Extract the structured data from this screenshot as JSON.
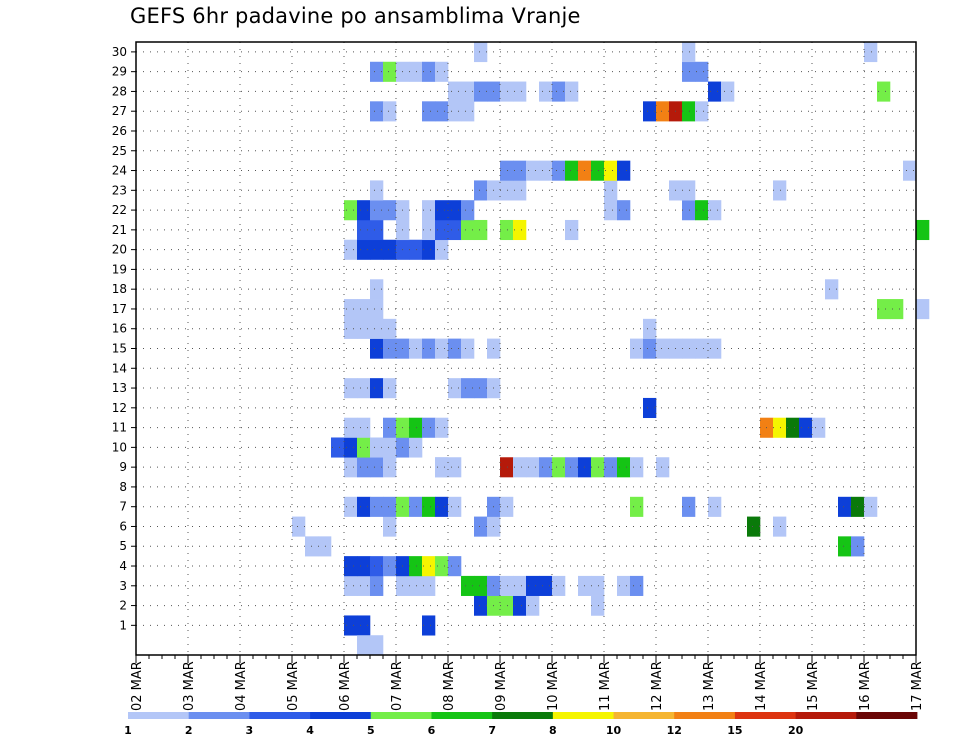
{
  "chart_data": {
    "type": "heatmap",
    "title": "GEFS 6hr padavine po ansamblima Vranje",
    "xlabel": "",
    "ylabel": "",
    "x_tick_labels": [
      "02 MAR",
      "03 MAR",
      "04 MAR",
      "05 MAR",
      "06 MAR",
      "07 MAR",
      "08 MAR",
      "09 MAR",
      "10 MAR",
      "11 MAR",
      "12 MAR",
      "13 MAR",
      "14 MAR",
      "15 MAR",
      "16 MAR",
      "17 MAR"
    ],
    "y_tick_labels": [
      "1",
      "2",
      "3",
      "4",
      "5",
      "6",
      "7",
      "8",
      "9",
      "10",
      "11",
      "12",
      "13",
      "14",
      "15",
      "16",
      "17",
      "18",
      "19",
      "20",
      "21",
      "22",
      "23",
      "24",
      "25",
      "26",
      "27",
      "28",
      "29",
      "30"
    ],
    "time_step_hours": 6,
    "ylim": [
      0,
      30
    ],
    "grid": true,
    "colorbar": {
      "position": "bottom",
      "labels": [
        "1",
        "2",
        "3",
        "4",
        "5",
        "6",
        "7",
        "8",
        "10",
        "12",
        "15",
        "20"
      ],
      "colors": [
        "#b3c6f7",
        "#6b8ff0",
        "#2f5ce8",
        "#0d3fd8",
        "#74ee48",
        "#15c415",
        "#0a7a0a",
        "#f5f500",
        "#f5b531",
        "#f28014",
        "#dd3410",
        "#b51a0a",
        "#6a0505"
      ]
    },
    "cells": [
      {
        "step": 16,
        "member": 1,
        "level": 3
      },
      {
        "step": 17,
        "member": 1,
        "level": 3
      },
      {
        "step": 17,
        "member": 0,
        "level": 0
      },
      {
        "step": 18,
        "member": 0,
        "level": 0
      },
      {
        "step": 22,
        "member": 1,
        "level": 3
      },
      {
        "step": 26,
        "member": 2,
        "level": 3
      },
      {
        "step": 27,
        "member": 2,
        "level": 4
      },
      {
        "step": 28,
        "member": 2,
        "level": 4
      },
      {
        "step": 29,
        "member": 2,
        "level": 3
      },
      {
        "step": 30,
        "member": 2,
        "level": 0
      },
      {
        "step": 35,
        "member": 2,
        "level": 0
      },
      {
        "step": 16,
        "member": 3,
        "level": 0
      },
      {
        "step": 17,
        "member": 3,
        "level": 0
      },
      {
        "step": 18,
        "member": 3,
        "level": 1
      },
      {
        "step": 20,
        "member": 3,
        "level": 0
      },
      {
        "step": 21,
        "member": 3,
        "level": 0
      },
      {
        "step": 22,
        "member": 3,
        "level": 0
      },
      {
        "step": 25,
        "member": 3,
        "level": 5
      },
      {
        "step": 26,
        "member": 3,
        "level": 5
      },
      {
        "step": 27,
        "member": 3,
        "level": 1
      },
      {
        "step": 28,
        "member": 3,
        "level": 0
      },
      {
        "step": 29,
        "member": 3,
        "level": 0
      },
      {
        "step": 30,
        "member": 3,
        "level": 3
      },
      {
        "step": 31,
        "member": 3,
        "level": 3
      },
      {
        "step": 32,
        "member": 3,
        "level": 0
      },
      {
        "step": 34,
        "member": 3,
        "level": 0
      },
      {
        "step": 35,
        "member": 3,
        "level": 0
      },
      {
        "step": 37,
        "member": 3,
        "level": 0
      },
      {
        "step": 38,
        "member": 3,
        "level": 1
      },
      {
        "step": 16,
        "member": 4,
        "level": 3
      },
      {
        "step": 17,
        "member": 4,
        "level": 3
      },
      {
        "step": 18,
        "member": 4,
        "level": 2
      },
      {
        "step": 19,
        "member": 4,
        "level": 1
      },
      {
        "step": 20,
        "member": 4,
        "level": 3
      },
      {
        "step": 21,
        "member": 4,
        "level": 5
      },
      {
        "step": 22,
        "member": 4,
        "level": 7
      },
      {
        "step": 23,
        "member": 4,
        "level": 4
      },
      {
        "step": 24,
        "member": 4,
        "level": 1
      },
      {
        "step": 13,
        "member": 5,
        "level": 0
      },
      {
        "step": 14,
        "member": 5,
        "level": 0
      },
      {
        "step": 54,
        "member": 5,
        "level": 5
      },
      {
        "step": 55,
        "member": 5,
        "level": 1
      },
      {
        "step": 12,
        "member": 6,
        "level": 0
      },
      {
        "step": 19,
        "member": 6,
        "level": 0
      },
      {
        "step": 26,
        "member": 6,
        "level": 1
      },
      {
        "step": 27,
        "member": 6,
        "level": 0
      },
      {
        "step": 47,
        "member": 6,
        "level": 6
      },
      {
        "step": 49,
        "member": 6,
        "level": 0
      },
      {
        "step": 16,
        "member": 7,
        "level": 0
      },
      {
        "step": 17,
        "member": 7,
        "level": 3
      },
      {
        "step": 18,
        "member": 7,
        "level": 1
      },
      {
        "step": 19,
        "member": 7,
        "level": 1
      },
      {
        "step": 20,
        "member": 7,
        "level": 4
      },
      {
        "step": 21,
        "member": 7,
        "level": 1
      },
      {
        "step": 22,
        "member": 7,
        "level": 5
      },
      {
        "step": 23,
        "member": 7,
        "level": 3
      },
      {
        "step": 24,
        "member": 7,
        "level": 0
      },
      {
        "step": 27,
        "member": 7,
        "level": 1
      },
      {
        "step": 28,
        "member": 7,
        "level": 0
      },
      {
        "step": 38,
        "member": 7,
        "level": 4
      },
      {
        "step": 42,
        "member": 7,
        "level": 1
      },
      {
        "step": 44,
        "member": 7,
        "level": 0
      },
      {
        "step": 54,
        "member": 7,
        "level": 3
      },
      {
        "step": 55,
        "member": 7,
        "level": 6
      },
      {
        "step": 56,
        "member": 7,
        "level": 0
      },
      {
        "step": 16,
        "member": 9,
        "level": 0
      },
      {
        "step": 17,
        "member": 9,
        "level": 1
      },
      {
        "step": 18,
        "member": 9,
        "level": 1
      },
      {
        "step": 19,
        "member": 9,
        "level": 0
      },
      {
        "step": 23,
        "member": 9,
        "level": 0
      },
      {
        "step": 24,
        "member": 9,
        "level": 0
      },
      {
        "step": 23,
        "member": 9,
        "level": 0
      },
      {
        "step": 28,
        "member": 9,
        "level": 11
      },
      {
        "step": 29,
        "member": 9,
        "level": 0
      },
      {
        "step": 30,
        "member": 9,
        "level": 0
      },
      {
        "step": 31,
        "member": 9,
        "level": 1
      },
      {
        "step": 32,
        "member": 9,
        "level": 4
      },
      {
        "step": 33,
        "member": 9,
        "level": 1
      },
      {
        "step": 34,
        "member": 9,
        "level": 3
      },
      {
        "step": 35,
        "member": 9,
        "level": 4
      },
      {
        "step": 36,
        "member": 9,
        "level": 1
      },
      {
        "step": 37,
        "member": 9,
        "level": 5
      },
      {
        "step": 38,
        "member": 9,
        "level": 0
      },
      {
        "step": 40,
        "member": 9,
        "level": 0
      },
      {
        "step": 15,
        "member": 10,
        "level": 2
      },
      {
        "step": 16,
        "member": 10,
        "level": 3
      },
      {
        "step": 17,
        "member": 10,
        "level": 4
      },
      {
        "step": 18,
        "member": 10,
        "level": 0
      },
      {
        "step": 19,
        "member": 10,
        "level": 0
      },
      {
        "step": 20,
        "member": 10,
        "level": 1
      },
      {
        "step": 21,
        "member": 10,
        "level": 0
      },
      {
        "step": 16,
        "member": 11,
        "level": 0
      },
      {
        "step": 17,
        "member": 11,
        "level": 0
      },
      {
        "step": 19,
        "member": 11,
        "level": 1
      },
      {
        "step": 20,
        "member": 11,
        "level": 4
      },
      {
        "step": 21,
        "member": 11,
        "level": 5
      },
      {
        "step": 22,
        "member": 11,
        "level": 1
      },
      {
        "step": 23,
        "member": 11,
        "level": 0
      },
      {
        "step": 48,
        "member": 11,
        "level": 9
      },
      {
        "step": 49,
        "member": 11,
        "level": 7
      },
      {
        "step": 50,
        "member": 11,
        "level": 6
      },
      {
        "step": 51,
        "member": 11,
        "level": 3
      },
      {
        "step": 52,
        "member": 11,
        "level": 0
      },
      {
        "step": 39,
        "member": 12,
        "level": 3
      },
      {
        "step": 16,
        "member": 13,
        "level": 0
      },
      {
        "step": 17,
        "member": 13,
        "level": 0
      },
      {
        "step": 18,
        "member": 13,
        "level": 3
      },
      {
        "step": 19,
        "member": 13,
        "level": 0
      },
      {
        "step": 24,
        "member": 13,
        "level": 0
      },
      {
        "step": 25,
        "member": 13,
        "level": 1
      },
      {
        "step": 26,
        "member": 13,
        "level": 1
      },
      {
        "step": 27,
        "member": 13,
        "level": 0
      },
      {
        "step": 18,
        "member": 15,
        "level": 3
      },
      {
        "step": 19,
        "member": 15,
        "level": 1
      },
      {
        "step": 20,
        "member": 15,
        "level": 1
      },
      {
        "step": 21,
        "member": 15,
        "level": 0
      },
      {
        "step": 22,
        "member": 15,
        "level": 1
      },
      {
        "step": 23,
        "member": 15,
        "level": 0
      },
      {
        "step": 24,
        "member": 15,
        "level": 1
      },
      {
        "step": 25,
        "member": 15,
        "level": 0
      },
      {
        "step": 27,
        "member": 15,
        "level": 0
      },
      {
        "step": 38,
        "member": 15,
        "level": 0
      },
      {
        "step": 39,
        "member": 15,
        "level": 1
      },
      {
        "step": 40,
        "member": 15,
        "level": 0
      },
      {
        "step": 41,
        "member": 15,
        "level": 0
      },
      {
        "step": 42,
        "member": 15,
        "level": 0
      },
      {
        "step": 43,
        "member": 15,
        "level": 0
      },
      {
        "step": 44,
        "member": 15,
        "level": 0
      },
      {
        "step": 16,
        "member": 16,
        "level": 0
      },
      {
        "step": 17,
        "member": 16,
        "level": 0
      },
      {
        "step": 18,
        "member": 16,
        "level": 0
      },
      {
        "step": 19,
        "member": 16,
        "level": 0
      },
      {
        "step": 39,
        "member": 16,
        "level": 0
      },
      {
        "step": 16,
        "member": 17,
        "level": 0
      },
      {
        "step": 17,
        "member": 17,
        "level": 0
      },
      {
        "step": 18,
        "member": 17,
        "level": 0
      },
      {
        "step": 57,
        "member": 17,
        "level": 4
      },
      {
        "step": 58,
        "member": 17,
        "level": 4
      },
      {
        "step": 60,
        "member": 17,
        "level": 0
      },
      {
        "step": 18,
        "member": 18,
        "level": 0
      },
      {
        "step": 53,
        "member": 18,
        "level": 0
      },
      {
        "step": 16,
        "member": 20,
        "level": 0
      },
      {
        "step": 17,
        "member": 20,
        "level": 3
      },
      {
        "step": 18,
        "member": 20,
        "level": 3
      },
      {
        "step": 19,
        "member": 20,
        "level": 3
      },
      {
        "step": 20,
        "member": 20,
        "level": 2
      },
      {
        "step": 21,
        "member": 20,
        "level": 2
      },
      {
        "step": 22,
        "member": 20,
        "level": 3
      },
      {
        "step": 23,
        "member": 20,
        "level": 0
      },
      {
        "step": 17,
        "member": 21,
        "level": 2
      },
      {
        "step": 18,
        "member": 21,
        "level": 2
      },
      {
        "step": 20,
        "member": 21,
        "level": 0
      },
      {
        "step": 22,
        "member": 21,
        "level": 0
      },
      {
        "step": 23,
        "member": 21,
        "level": 2
      },
      {
        "step": 24,
        "member": 21,
        "level": 2
      },
      {
        "step": 25,
        "member": 21,
        "level": 4
      },
      {
        "step": 26,
        "member": 21,
        "level": 4
      },
      {
        "step": 28,
        "member": 21,
        "level": 4
      },
      {
        "step": 29,
        "member": 21,
        "level": 7
      },
      {
        "step": 33,
        "member": 21,
        "level": 0
      },
      {
        "step": 60,
        "member": 21,
        "level": 5
      },
      {
        "step": 16,
        "member": 22,
        "level": 4
      },
      {
        "step": 17,
        "member": 22,
        "level": 3
      },
      {
        "step": 18,
        "member": 22,
        "level": 1
      },
      {
        "step": 19,
        "member": 22,
        "level": 1
      },
      {
        "step": 20,
        "member": 22,
        "level": 0
      },
      {
        "step": 22,
        "member": 22,
        "level": 0
      },
      {
        "step": 23,
        "member": 22,
        "level": 3
      },
      {
        "step": 24,
        "member": 22,
        "level": 3
      },
      {
        "step": 25,
        "member": 22,
        "level": 1
      },
      {
        "step": 36,
        "member": 22,
        "level": 0
      },
      {
        "step": 37,
        "member": 22,
        "level": 1
      },
      {
        "step": 42,
        "member": 22,
        "level": 1
      },
      {
        "step": 43,
        "member": 22,
        "level": 5
      },
      {
        "step": 44,
        "member": 22,
        "level": 0
      },
      {
        "step": 18,
        "member": 23,
        "level": 0
      },
      {
        "step": 26,
        "member": 23,
        "level": 1
      },
      {
        "step": 27,
        "member": 23,
        "level": 0
      },
      {
        "step": 28,
        "member": 23,
        "level": 0
      },
      {
        "step": 29,
        "member": 23,
        "level": 0
      },
      {
        "step": 36,
        "member": 23,
        "level": 0
      },
      {
        "step": 41,
        "member": 23,
        "level": 0
      },
      {
        "step": 42,
        "member": 23,
        "level": 0
      },
      {
        "step": 49,
        "member": 23,
        "level": 0
      },
      {
        "step": 28,
        "member": 24,
        "level": 1
      },
      {
        "step": 29,
        "member": 24,
        "level": 1
      },
      {
        "step": 30,
        "member": 24,
        "level": 0
      },
      {
        "step": 31,
        "member": 24,
        "level": 0
      },
      {
        "step": 32,
        "member": 24,
        "level": 1
      },
      {
        "step": 33,
        "member": 24,
        "level": 5
      },
      {
        "step": 34,
        "member": 24,
        "level": 9
      },
      {
        "step": 35,
        "member": 24,
        "level": 5
      },
      {
        "step": 36,
        "member": 24,
        "level": 7
      },
      {
        "step": 37,
        "member": 24,
        "level": 3
      },
      {
        "step": 59,
        "member": 24,
        "level": 0
      },
      {
        "step": 18,
        "member": 27,
        "level": 1
      },
      {
        "step": 19,
        "member": 27,
        "level": 0
      },
      {
        "step": 22,
        "member": 27,
        "level": 1
      },
      {
        "step": 23,
        "member": 27,
        "level": 1
      },
      {
        "step": 24,
        "member": 27,
        "level": 0
      },
      {
        "step": 25,
        "member": 27,
        "level": 0
      },
      {
        "step": 39,
        "member": 27,
        "level": 3
      },
      {
        "step": 40,
        "member": 27,
        "level": 9
      },
      {
        "step": 41,
        "member": 27,
        "level": 11
      },
      {
        "step": 42,
        "member": 27,
        "level": 5
      },
      {
        "step": 43,
        "member": 27,
        "level": 0
      },
      {
        "step": 24,
        "member": 28,
        "level": 0
      },
      {
        "step": 25,
        "member": 28,
        "level": 0
      },
      {
        "step": 26,
        "member": 28,
        "level": 1
      },
      {
        "step": 27,
        "member": 28,
        "level": 1
      },
      {
        "step": 28,
        "member": 28,
        "level": 0
      },
      {
        "step": 29,
        "member": 28,
        "level": 0
      },
      {
        "step": 31,
        "member": 28,
        "level": 0
      },
      {
        "step": 32,
        "member": 28,
        "level": 1
      },
      {
        "step": 33,
        "member": 28,
        "level": 0
      },
      {
        "step": 44,
        "member": 28,
        "level": 3
      },
      {
        "step": 45,
        "member": 28,
        "level": 0
      },
      {
        "step": 57,
        "member": 28,
        "level": 4
      },
      {
        "step": 18,
        "member": 29,
        "level": 1
      },
      {
        "step": 19,
        "member": 29,
        "level": 4
      },
      {
        "step": 20,
        "member": 29,
        "level": 0
      },
      {
        "step": 21,
        "member": 29,
        "level": 0
      },
      {
        "step": 22,
        "member": 29,
        "level": 1
      },
      {
        "step": 23,
        "member": 29,
        "level": 0
      },
      {
        "step": 42,
        "member": 29,
        "level": 1
      },
      {
        "step": 43,
        "member": 29,
        "level": 1
      },
      {
        "step": 26,
        "member": 30,
        "level": 0
      },
      {
        "step": 42,
        "member": 30,
        "level": 0
      },
      {
        "step": 56,
        "member": 30,
        "level": 0
      }
    ]
  }
}
